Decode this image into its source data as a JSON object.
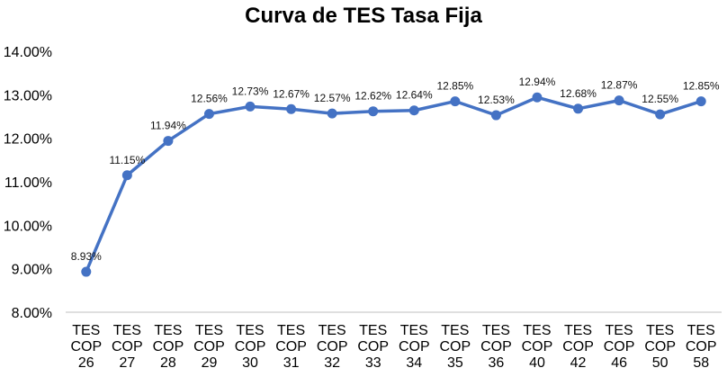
{
  "chart_data": {
    "type": "line",
    "title": "Curva de TES Tasa Fija",
    "categories": [
      [
        "TES",
        "COP",
        "26"
      ],
      [
        "TES",
        "COP",
        "27"
      ],
      [
        "TES",
        "COP",
        "28"
      ],
      [
        "TES",
        "COP",
        "29"
      ],
      [
        "TES",
        "COP",
        "30"
      ],
      [
        "TES",
        "COP",
        "31"
      ],
      [
        "TES",
        "COP",
        "32"
      ],
      [
        "TES",
        "COP",
        "33"
      ],
      [
        "TES",
        "COP",
        "34"
      ],
      [
        "TES",
        "COP",
        "35"
      ],
      [
        "TES",
        "COP",
        "36"
      ],
      [
        "TES",
        "COP",
        "40"
      ],
      [
        "TES",
        "COP",
        "42"
      ],
      [
        "TES",
        "COP",
        "46"
      ],
      [
        "TES",
        "COP",
        "50"
      ],
      [
        "TES",
        "COP",
        "58"
      ]
    ],
    "values": [
      8.93,
      11.15,
      11.94,
      12.56,
      12.73,
      12.67,
      12.57,
      12.62,
      12.64,
      12.85,
      12.53,
      12.94,
      12.68,
      12.87,
      12.55,
      12.85
    ],
    "data_labels": [
      "8.93%",
      "11.15%",
      "11.94%",
      "12.56%",
      "12.73%",
      "12.67%",
      "12.57%",
      "12.62%",
      "12.64%",
      "12.85%",
      "12.53%",
      "12.94%",
      "12.68%",
      "12.87%",
      "12.55%",
      "12.85%"
    ],
    "yticks": [
      8,
      9,
      10,
      11,
      12,
      13,
      14
    ],
    "ytick_labels": [
      "8.00%",
      "9.00%",
      "10.00%",
      "11.00%",
      "12.00%",
      "13.00%",
      "14.00%"
    ],
    "ylim": [
      8,
      14
    ],
    "xlabel": "",
    "ylabel": "",
    "grid": false,
    "legend": "none",
    "colors": {
      "line": "#4472C4",
      "axis": "#BFBFBF"
    }
  }
}
